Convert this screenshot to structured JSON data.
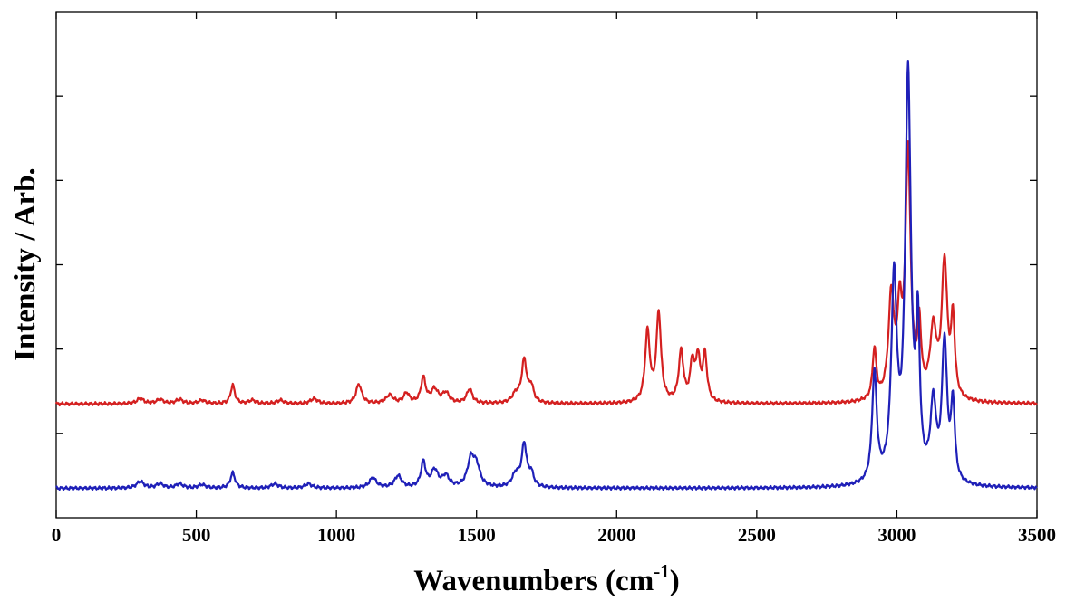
{
  "chart_data": {
    "type": "line",
    "xlabel_main": "Wavenumbers (cm",
    "xlabel_sup": "-1",
    "xlabel_close": ")",
    "ylabel": "Intensity / Arb.",
    "xlim": [
      0,
      3500
    ],
    "ylim": [
      0,
      6
    ],
    "x_ticks": [
      0,
      500,
      1000,
      1500,
      2000,
      2500,
      3000,
      3500
    ],
    "x_tick_labels": [
      "0",
      "500",
      "1000",
      "1500",
      "2000",
      "2500",
      "3000",
      "3500"
    ],
    "y_ticks": [
      1,
      2,
      3,
      4,
      5
    ],
    "y_tick_labels_shown": false,
    "grid": false,
    "legend": "none",
    "series": [
      {
        "color": "#d42020",
        "baseline": 1.35,
        "peaks": [
          [
            300,
            0.06,
            15
          ],
          [
            370,
            0.05,
            15
          ],
          [
            440,
            0.05,
            15
          ],
          [
            520,
            0.04,
            15
          ],
          [
            630,
            0.22,
            9
          ],
          [
            700,
            0.04,
            15
          ],
          [
            800,
            0.04,
            15
          ],
          [
            920,
            0.06,
            15
          ],
          [
            1080,
            0.23,
            12
          ],
          [
            1190,
            0.1,
            15
          ],
          [
            1250,
            0.12,
            12
          ],
          [
            1310,
            0.3,
            10
          ],
          [
            1350,
            0.16,
            15
          ],
          [
            1390,
            0.12,
            15
          ],
          [
            1475,
            0.17,
            12
          ],
          [
            1640,
            0.1,
            15
          ],
          [
            1670,
            0.5,
            11
          ],
          [
            1695,
            0.18,
            10
          ],
          [
            2110,
            0.84,
            10
          ],
          [
            2150,
            1.05,
            10
          ],
          [
            2230,
            0.6,
            10
          ],
          [
            2270,
            0.45,
            9
          ],
          [
            2290,
            0.5,
            9
          ],
          [
            2315,
            0.55,
            9
          ],
          [
            2920,
            0.6,
            8
          ],
          [
            2980,
            1.2,
            12
          ],
          [
            3010,
            0.9,
            10
          ],
          [
            3040,
            2.9,
            11
          ],
          [
            3080,
            0.8,
            8
          ],
          [
            3130,
            0.8,
            14
          ],
          [
            3170,
            1.6,
            12
          ],
          [
            3200,
            0.9,
            8
          ]
        ]
      },
      {
        "color": "#1f20b8",
        "baseline": 0.35,
        "peaks": [
          [
            300,
            0.08,
            15
          ],
          [
            370,
            0.05,
            15
          ],
          [
            440,
            0.05,
            15
          ],
          [
            520,
            0.04,
            15
          ],
          [
            630,
            0.18,
            10
          ],
          [
            780,
            0.05,
            15
          ],
          [
            900,
            0.05,
            15
          ],
          [
            1130,
            0.12,
            15
          ],
          [
            1220,
            0.14,
            15
          ],
          [
            1310,
            0.3,
            10
          ],
          [
            1350,
            0.2,
            15
          ],
          [
            1390,
            0.13,
            15
          ],
          [
            1480,
            0.32,
            15
          ],
          [
            1500,
            0.22,
            15
          ],
          [
            1640,
            0.15,
            15
          ],
          [
            1670,
            0.5,
            11
          ],
          [
            1695,
            0.15,
            10
          ],
          [
            2920,
            1.3,
            10
          ],
          [
            2990,
            2.35,
            12
          ],
          [
            3040,
            4.8,
            12
          ],
          [
            3075,
            1.7,
            8
          ],
          [
            3130,
            0.9,
            12
          ],
          [
            3170,
            1.65,
            11
          ],
          [
            3200,
            0.9,
            8
          ]
        ]
      }
    ]
  }
}
